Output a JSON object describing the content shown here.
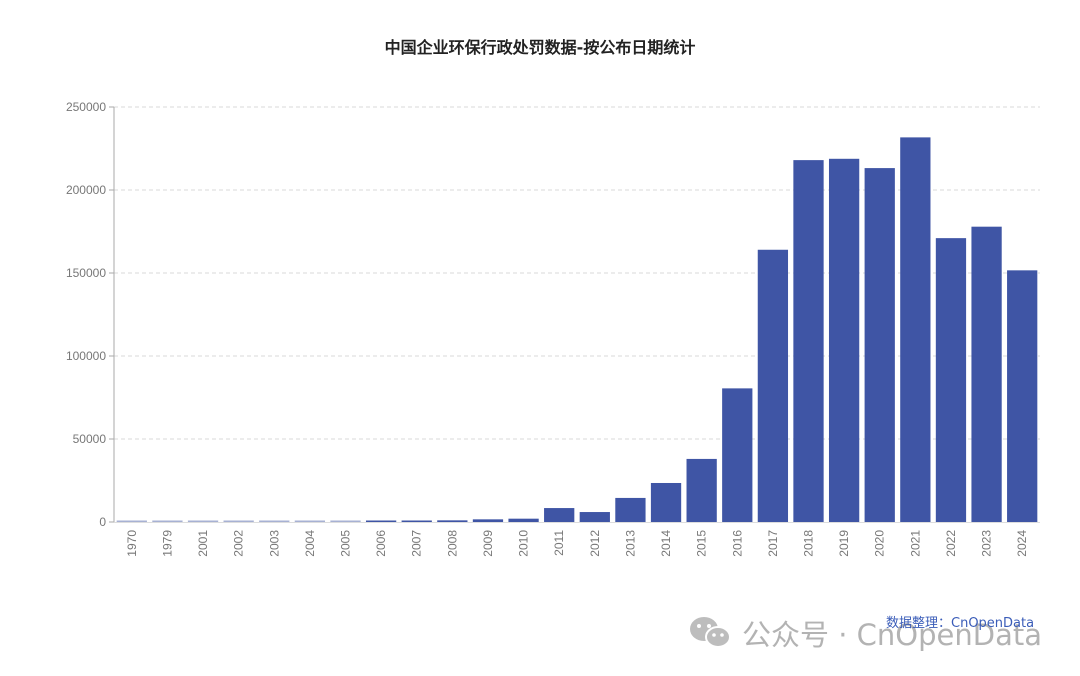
{
  "chart_data": {
    "type": "bar",
    "title": "中国企业环保行政处罚数据-按公布日期统计",
    "xlabel": "",
    "ylabel": "",
    "ylim": [
      0,
      250000
    ],
    "yticks": [
      0,
      50000,
      100000,
      150000,
      200000,
      250000
    ],
    "grid": true,
    "legend": null,
    "bar_color": "#3f55a5",
    "categories": [
      "1970",
      "1979",
      "2001",
      "2002",
      "2003",
      "2004",
      "2005",
      "2006",
      "2007",
      "2008",
      "2009",
      "2010",
      "2011",
      "2012",
      "2013",
      "2014",
      "2015",
      "2016",
      "2017",
      "2018",
      "2019",
      "2020",
      "2021",
      "2022",
      "2023",
      "2024"
    ],
    "values": [
      5,
      20,
      60,
      80,
      120,
      160,
      250,
      600,
      800,
      1000,
      1600,
      2000,
      8400,
      6000,
      14500,
      23500,
      38000,
      80500,
      164000,
      218000,
      218800,
      213200,
      231700,
      171000,
      177900,
      151600
    ]
  },
  "credit": "数据整理：CnOpenData",
  "watermark": "公众号 · CnOpenData"
}
